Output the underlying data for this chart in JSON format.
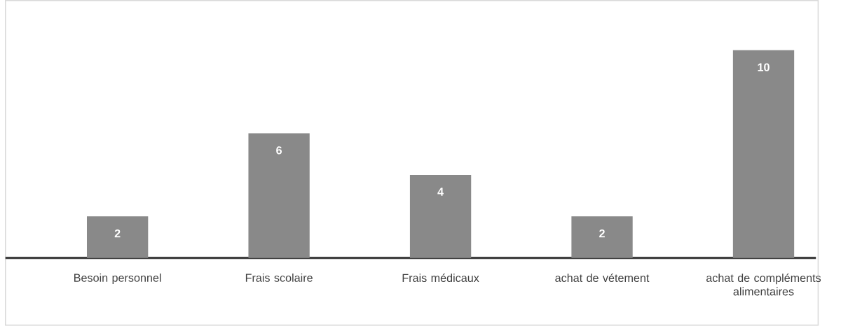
{
  "chart_data": {
    "type": "bar",
    "categories": [
      "Besoin personnel",
      "Frais scolaire",
      "Frais médicaux",
      "achat de vétement",
      "achat de compléments alimentaires"
    ],
    "values": [
      2,
      6,
      4,
      2,
      10
    ],
    "color": "#898989",
    "data_labels": true
  }
}
